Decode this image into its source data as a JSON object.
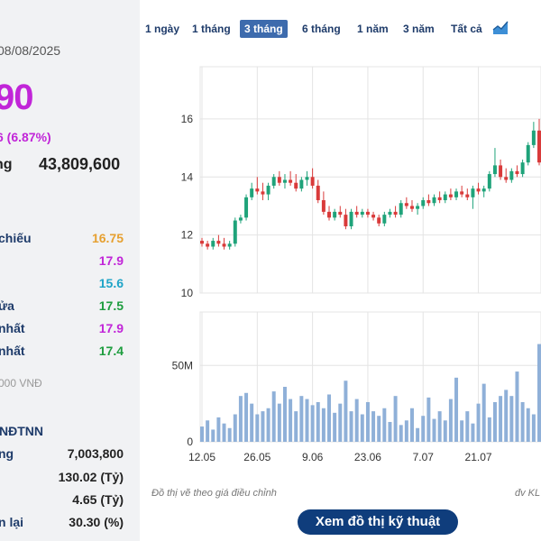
{
  "info": {
    "date": "08/08/2025",
    "price": "90",
    "change": "6 (6.87%)",
    "volume_label": "ng",
    "volume_value": "43,809,600",
    "price_rows": [
      {
        "label": "chiếu",
        "value": "16.75",
        "color": "#e6a030"
      },
      {
        "label": "",
        "value": "17.9",
        "color": "#c125d8"
      },
      {
        "label": "",
        "value": "15.6",
        "color": "#1fa4c7"
      },
      {
        "label": "ửa",
        "value": "17.5",
        "color": "#1e9d3f"
      },
      {
        "label": "nhất",
        "value": "17.9",
        "color": "#c125d8"
      },
      {
        "label": "nhất",
        "value": "17.4",
        "color": "#1e9d3f"
      }
    ],
    "unit_note": "000 VNĐ",
    "foreign_title": "NĐTNN",
    "foreign_rows": [
      {
        "label": "ng",
        "value": "7,003,800"
      },
      {
        "label": "",
        "value": "130.02 (Tỷ)"
      },
      {
        "label": "",
        "value": "4.65 (Tỷ)"
      },
      {
        "label": "n lại",
        "value": "30.30 (%)"
      }
    ]
  },
  "tabs": [
    {
      "label": "1 ngày",
      "active": false
    },
    {
      "label": "1 tháng",
      "active": false
    },
    {
      "label": "3 tháng",
      "active": true
    },
    {
      "label": "6 tháng",
      "active": false
    },
    {
      "label": "1 năm",
      "active": false
    },
    {
      "label": "3 năm",
      "active": false
    },
    {
      "label": "Tất cả",
      "active": false
    }
  ],
  "chart_data": {
    "type": "candlestick",
    "price_ticks": [
      "10",
      "12",
      "14",
      "16"
    ],
    "price_range": [
      10,
      17.8
    ],
    "volume_ticks": [
      "0",
      "50M"
    ],
    "volume_range": [
      0,
      85
    ],
    "x_ticks": [
      "12.05",
      "26.05",
      "9.06",
      "23.06",
      "7.07",
      "21.07"
    ],
    "colors": {
      "up": "#1fa37a",
      "down": "#d93a3a",
      "grid": "#e4e4e4",
      "volume": "#8fb0d8"
    },
    "candles": [
      [
        11.8,
        11.9,
        11.6,
        11.7
      ],
      [
        11.7,
        11.8,
        11.5,
        11.6
      ],
      [
        11.6,
        11.9,
        11.5,
        11.8
      ],
      [
        11.8,
        12.0,
        11.6,
        11.7
      ],
      [
        11.7,
        11.9,
        11.5,
        11.6
      ],
      [
        11.6,
        11.8,
        11.5,
        11.7
      ],
      [
        11.7,
        12.6,
        11.6,
        12.5
      ],
      [
        12.5,
        12.7,
        12.4,
        12.6
      ],
      [
        12.6,
        13.4,
        12.5,
        13.3
      ],
      [
        13.3,
        13.8,
        13.2,
        13.6
      ],
      [
        13.6,
        14.0,
        13.4,
        13.5
      ],
      [
        13.5,
        13.8,
        13.2,
        13.4
      ],
      [
        13.4,
        13.8,
        13.2,
        13.7
      ],
      [
        13.7,
        14.1,
        13.6,
        14.0
      ],
      [
        14.0,
        14.2,
        13.7,
        13.8
      ],
      [
        13.8,
        14.1,
        13.6,
        13.9
      ],
      [
        13.9,
        14.2,
        13.7,
        13.8
      ],
      [
        13.8,
        14.1,
        13.5,
        13.6
      ],
      [
        13.6,
        14.0,
        13.5,
        13.9
      ],
      [
        13.9,
        14.2,
        13.7,
        14.0
      ],
      [
        14.0,
        14.3,
        13.6,
        13.7
      ],
      [
        13.7,
        13.9,
        13.1,
        13.2
      ],
      [
        13.2,
        13.5,
        12.7,
        12.8
      ],
      [
        12.8,
        13.0,
        12.5,
        12.6
      ],
      [
        12.6,
        12.9,
        12.5,
        12.8
      ],
      [
        12.8,
        13.0,
        12.6,
        12.7
      ],
      [
        12.7,
        12.9,
        12.2,
        12.3
      ],
      [
        12.3,
        12.9,
        12.2,
        12.8
      ],
      [
        12.8,
        13.0,
        12.6,
        12.7
      ],
      [
        12.7,
        12.9,
        12.6,
        12.8
      ],
      [
        12.8,
        12.9,
        12.6,
        12.7
      ],
      [
        12.7,
        12.8,
        12.5,
        12.6
      ],
      [
        12.6,
        12.7,
        12.3,
        12.4
      ],
      [
        12.4,
        12.8,
        12.3,
        12.7
      ],
      [
        12.7,
        12.9,
        12.6,
        12.8
      ],
      [
        12.8,
        13.0,
        12.6,
        12.7
      ],
      [
        12.7,
        13.2,
        12.6,
        13.1
      ],
      [
        13.1,
        13.3,
        12.9,
        13.0
      ],
      [
        13.0,
        13.2,
        12.8,
        12.9
      ],
      [
        12.9,
        13.1,
        12.7,
        13.0
      ],
      [
        13.0,
        13.3,
        12.9,
        13.2
      ],
      [
        13.2,
        13.4,
        13.0,
        13.1
      ],
      [
        13.1,
        13.4,
        13.0,
        13.3
      ],
      [
        13.3,
        13.5,
        13.1,
        13.2
      ],
      [
        13.2,
        13.5,
        13.1,
        13.4
      ],
      [
        13.4,
        13.6,
        13.2,
        13.3
      ],
      [
        13.3,
        13.6,
        13.2,
        13.5
      ],
      [
        13.5,
        13.7,
        13.3,
        13.4
      ],
      [
        13.4,
        13.6,
        13.2,
        13.3
      ],
      [
        13.3,
        13.7,
        12.9,
        13.6
      ],
      [
        13.6,
        13.8,
        13.4,
        13.5
      ],
      [
        13.5,
        13.7,
        13.3,
        13.6
      ],
      [
        13.6,
        14.2,
        13.5,
        14.1
      ],
      [
        14.1,
        15.0,
        14.0,
        14.4
      ],
      [
        14.4,
        14.6,
        13.9,
        14.0
      ],
      [
        14.0,
        14.3,
        13.8,
        13.9
      ],
      [
        13.9,
        14.3,
        13.8,
        14.2
      ],
      [
        14.2,
        14.4,
        14.0,
        14.1
      ],
      [
        14.1,
        14.6,
        14.0,
        14.5
      ],
      [
        14.5,
        15.2,
        14.4,
        15.1
      ],
      [
        15.1,
        15.9,
        15.0,
        15.6
      ],
      [
        15.6,
        16.0,
        14.4,
        14.5
      ]
    ],
    "volumes": [
      10,
      14,
      8,
      16,
      12,
      9,
      18,
      30,
      32,
      25,
      18,
      20,
      22,
      33,
      25,
      36,
      28,
      20,
      30,
      28,
      24,
      26,
      22,
      31,
      19,
      25,
      40,
      20,
      28,
      18,
      26,
      20,
      17,
      22,
      13,
      30,
      11,
      14,
      22,
      9,
      17,
      29,
      15,
      20,
      14,
      28,
      42,
      14,
      20,
      12,
      25,
      38,
      16,
      26,
      30,
      34,
      30,
      46,
      26,
      22,
      18,
      64
    ]
  },
  "footer": {
    "note": "Đồ thị vẽ theo giá điều chỉnh",
    "unit": "đv KL",
    "button": "Xem đồ thị kỹ thuật"
  }
}
